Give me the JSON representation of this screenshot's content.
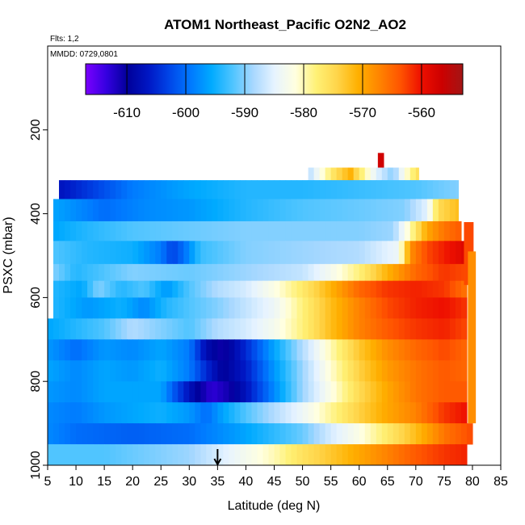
{
  "chart_data": {
    "type": "heatmap",
    "title": "ATOM1 Northeast_Pacific O2N2_AO2",
    "flights_label": "Flts: 1,2",
    "date_label": "MMDD: 0729,0801",
    "xlabel": "Latitude (deg N)",
    "ylabel": "PSXC (mbar)",
    "xlim": [
      5,
      85
    ],
    "ylim": [
      1000,
      0
    ],
    "x_ticks": [
      5,
      10,
      15,
      20,
      25,
      30,
      35,
      40,
      45,
      50,
      55,
      60,
      65,
      70,
      75,
      80,
      85
    ],
    "y_ticks": [
      200,
      400,
      600,
      800,
      1000
    ],
    "colorbar": {
      "min": -617,
      "max": -553,
      "ticks": [
        -610,
        -600,
        -590,
        -580,
        -570,
        -560
      ],
      "colors": [
        "#7b00ff",
        "#3400e0",
        "#00009a",
        "#0017c4",
        "#0046e8",
        "#0078ff",
        "#00aaff",
        "#4dc4ff",
        "#a8d8ff",
        "#e6f3ff",
        "#ffffe0",
        "#fff176",
        "#ffd54a",
        "#ffb000",
        "#ff8500",
        "#ff5500",
        "#ee1000",
        "#cc0000",
        "#a31515"
      ],
      "orientation": "horizontal",
      "placement": "top"
    },
    "marker_latitude": 35,
    "layers": [
      {
        "p_top": 255,
        "p_bot": 290,
        "lat_start": 63.3,
        "lat_end": 64.3,
        "kp": [
          [
            63.3,
            -557
          ]
        ]
      },
      {
        "p_top": 290,
        "p_bot": 320,
        "lat_start": 51,
        "lat_end": 70.5,
        "kp": [
          [
            51,
            -588
          ],
          [
            54,
            -580
          ],
          [
            56,
            -575
          ],
          [
            58.5,
            -571
          ],
          [
            60.5,
            -578
          ],
          [
            63,
            -585
          ],
          [
            66,
            -590
          ],
          [
            68,
            -582
          ],
          [
            70.5,
            -575
          ]
        ]
      },
      {
        "p_top": 320,
        "p_bot": 365,
        "lat_start": 7,
        "lat_end": 77.5,
        "kp": [
          [
            7,
            -607
          ],
          [
            12,
            -604
          ],
          [
            20,
            -599
          ],
          [
            30,
            -596
          ],
          [
            40,
            -594
          ],
          [
            50,
            -594
          ],
          [
            60,
            -593
          ],
          [
            70,
            -592
          ],
          [
            77.5,
            -590
          ]
        ]
      },
      {
        "p_top": 365,
        "p_bot": 418,
        "lat_start": 6,
        "lat_end": 77.5,
        "kp": [
          [
            6,
            -596
          ],
          [
            15,
            -600
          ],
          [
            22,
            -598
          ],
          [
            30,
            -597
          ],
          [
            40,
            -594
          ],
          [
            50,
            -592
          ],
          [
            60,
            -591
          ],
          [
            68,
            -590
          ],
          [
            72,
            -585
          ],
          [
            74,
            -575
          ],
          [
            77.5,
            -572
          ]
        ]
      },
      {
        "p_top": 418,
        "p_bot": 465,
        "lat_start": 6,
        "lat_end": 78,
        "kp": [
          [
            6,
            -596
          ],
          [
            12,
            -594
          ],
          [
            20,
            -592
          ],
          [
            30,
            -591
          ],
          [
            40,
            -590
          ],
          [
            50,
            -590
          ],
          [
            60,
            -590
          ],
          [
            66,
            -589
          ],
          [
            69,
            -580
          ],
          [
            72,
            -570
          ],
          [
            75,
            -566
          ],
          [
            78,
            -564
          ]
        ]
      },
      {
        "p_top": 465,
        "p_bot": 520,
        "lat_start": 6,
        "lat_end": 79,
        "kp": [
          [
            6,
            -592
          ],
          [
            12,
            -594
          ],
          [
            20,
            -595
          ],
          [
            25,
            -599
          ],
          [
            27,
            -603
          ],
          [
            29,
            -600
          ],
          [
            32,
            -593
          ],
          [
            40,
            -590
          ],
          [
            50,
            -589
          ],
          [
            60,
            -588
          ],
          [
            67,
            -584
          ],
          [
            69,
            -568
          ],
          [
            72,
            -563
          ],
          [
            76,
            -560
          ],
          [
            79,
            -558
          ]
        ]
      },
      {
        "p_top": 520,
        "p_bot": 560,
        "lat_start": 6,
        "lat_end": 78.5,
        "kp": [
          [
            6,
            -590
          ],
          [
            10,
            -594
          ],
          [
            15,
            -592
          ],
          [
            20,
            -590
          ],
          [
            30,
            -591
          ],
          [
            40,
            -589
          ],
          [
            50,
            -587
          ],
          [
            55,
            -583
          ],
          [
            60,
            -578
          ],
          [
            65,
            -571
          ],
          [
            70,
            -565
          ],
          [
            75,
            -562
          ],
          [
            78.5,
            -563
          ]
        ]
      },
      {
        "p_top": 560,
        "p_bot": 600,
        "lat_start": 6,
        "lat_end": 79,
        "kp": [
          [
            6,
            -594
          ],
          [
            11,
            -596
          ],
          [
            14,
            -590
          ],
          [
            18,
            -594
          ],
          [
            22,
            -592
          ],
          [
            26,
            -597
          ],
          [
            30,
            -592
          ],
          [
            35,
            -588
          ],
          [
            40,
            -586
          ],
          [
            45,
            -582
          ],
          [
            50,
            -577
          ],
          [
            55,
            -571
          ],
          [
            60,
            -565
          ],
          [
            65,
            -562
          ],
          [
            70,
            -561
          ],
          [
            75,
            -562
          ],
          [
            79,
            -566
          ]
        ]
      },
      {
        "p_top": 600,
        "p_bot": 650,
        "lat_start": 6,
        "lat_end": 79,
        "kp": [
          [
            6,
            -594
          ],
          [
            12,
            -597
          ],
          [
            18,
            -595
          ],
          [
            22,
            -598
          ],
          [
            26,
            -594
          ],
          [
            30,
            -592
          ],
          [
            35,
            -590
          ],
          [
            40,
            -587
          ],
          [
            45,
            -584
          ],
          [
            50,
            -578
          ],
          [
            55,
            -572
          ],
          [
            60,
            -567
          ],
          [
            65,
            -563
          ],
          [
            70,
            -561
          ],
          [
            75,
            -560
          ],
          [
            79,
            -562
          ]
        ]
      },
      {
        "p_top": 650,
        "p_bot": 700,
        "lat_start": 5,
        "lat_end": 79,
        "kp": [
          [
            5,
            -596
          ],
          [
            10,
            -594
          ],
          [
            15,
            -592
          ],
          [
            20,
            -588
          ],
          [
            25,
            -590
          ],
          [
            30,
            -592
          ],
          [
            35,
            -588
          ],
          [
            40,
            -586
          ],
          [
            45,
            -583
          ],
          [
            50,
            -578
          ],
          [
            55,
            -572
          ],
          [
            60,
            -567
          ],
          [
            65,
            -564
          ],
          [
            70,
            -562
          ],
          [
            75,
            -561
          ],
          [
            79,
            -563
          ]
        ]
      },
      {
        "p_top": 700,
        "p_bot": 750,
        "lat_start": 5,
        "lat_end": 79,
        "kp": [
          [
            5,
            -597
          ],
          [
            10,
            -600
          ],
          [
            15,
            -597
          ],
          [
            20,
            -598
          ],
          [
            25,
            -596
          ],
          [
            30,
            -599
          ],
          [
            33,
            -608
          ],
          [
            36,
            -611
          ],
          [
            40,
            -605
          ],
          [
            45,
            -596
          ],
          [
            50,
            -588
          ],
          [
            55,
            -580
          ],
          [
            60,
            -573
          ],
          [
            65,
            -568
          ],
          [
            70,
            -565
          ],
          [
            75,
            -563
          ],
          [
            79,
            -565
          ]
        ]
      },
      {
        "p_top": 750,
        "p_bot": 800,
        "lat_start": 5,
        "lat_end": 79,
        "kp": [
          [
            5,
            -596
          ],
          [
            10,
            -598
          ],
          [
            15,
            -596
          ],
          [
            20,
            -597
          ],
          [
            25,
            -595
          ],
          [
            30,
            -599
          ],
          [
            33,
            -605
          ],
          [
            36,
            -610
          ],
          [
            40,
            -606
          ],
          [
            45,
            -597
          ],
          [
            50,
            -589
          ],
          [
            55,
            -581
          ],
          [
            60,
            -574
          ],
          [
            65,
            -569
          ],
          [
            70,
            -566
          ],
          [
            75,
            -564
          ],
          [
            79,
            -565
          ]
        ]
      },
      {
        "p_top": 800,
        "p_bot": 850,
        "lat_start": 5,
        "lat_end": 79,
        "kp": [
          [
            5,
            -597
          ],
          [
            10,
            -598
          ],
          [
            15,
            -596
          ],
          [
            20,
            -596
          ],
          [
            25,
            -596
          ],
          [
            28,
            -603
          ],
          [
            31,
            -609
          ],
          [
            34,
            -613
          ],
          [
            37,
            -611
          ],
          [
            40,
            -607
          ],
          [
            45,
            -598
          ],
          [
            50,
            -589
          ],
          [
            55,
            -582
          ],
          [
            60,
            -575
          ],
          [
            65,
            -570
          ],
          [
            70,
            -566
          ],
          [
            75,
            -564
          ],
          [
            79,
            -564
          ]
        ]
      },
      {
        "p_top": 850,
        "p_bot": 900,
        "lat_start": 5,
        "lat_end": 79,
        "kp": [
          [
            5,
            -598
          ],
          [
            10,
            -599
          ],
          [
            15,
            -597
          ],
          [
            20,
            -596
          ],
          [
            25,
            -595
          ],
          [
            30,
            -597
          ],
          [
            33,
            -600
          ],
          [
            36,
            -596
          ],
          [
            40,
            -592
          ],
          [
            45,
            -588
          ],
          [
            50,
            -584
          ],
          [
            55,
            -579
          ],
          [
            60,
            -574
          ],
          [
            65,
            -570
          ],
          [
            70,
            -567
          ],
          [
            75,
            -562
          ],
          [
            79,
            -560
          ]
        ]
      },
      {
        "p_top": 900,
        "p_bot": 950,
        "lat_start": 5,
        "lat_end": 80,
        "kp": [
          [
            5,
            -598
          ],
          [
            10,
            -600
          ],
          [
            20,
            -601
          ],
          [
            30,
            -600
          ],
          [
            40,
            -596
          ],
          [
            50,
            -591
          ],
          [
            55,
            -586
          ],
          [
            60,
            -582
          ],
          [
            65,
            -577
          ],
          [
            70,
            -572
          ],
          [
            75,
            -566
          ],
          [
            80,
            -563
          ]
        ]
      },
      {
        "p_top": 950,
        "p_bot": 1000,
        "lat_start": 5,
        "lat_end": 79,
        "kp": [
          [
            5,
            -592
          ],
          [
            10,
            -592
          ],
          [
            15,
            -592
          ],
          [
            20,
            -591
          ],
          [
            25,
            -590
          ],
          [
            30,
            -589
          ],
          [
            35,
            -586
          ],
          [
            40,
            -583
          ],
          [
            45,
            -580
          ],
          [
            50,
            -576
          ],
          [
            55,
            -573
          ],
          [
            60,
            -570
          ],
          [
            65,
            -567
          ],
          [
            70,
            -564
          ],
          [
            75,
            -562
          ],
          [
            79,
            -561
          ]
        ]
      }
    ],
    "edge_strips": [
      {
        "lat_start": 78.5,
        "lat_end": 80.2,
        "p_top": 420,
        "p_bot": 570,
        "value": -563
      },
      {
        "lat_start": 79.2,
        "lat_end": 80.6,
        "p_top": 490,
        "p_bot": 900,
        "value": -568
      }
    ]
  }
}
